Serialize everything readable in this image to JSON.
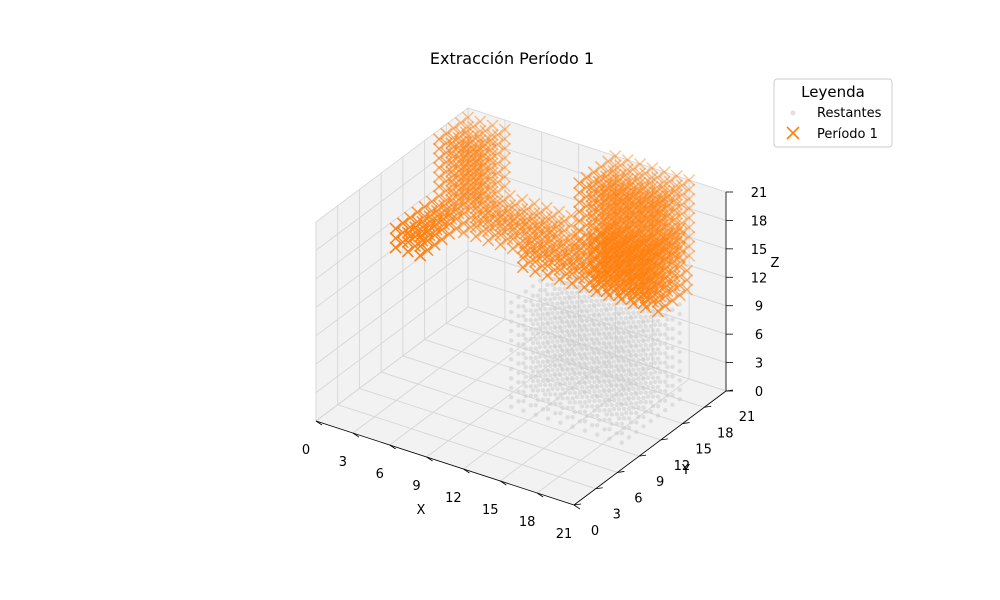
{
  "chart_data": {
    "type": "scatter",
    "projection": "3d",
    "title": "Extracción Período 1",
    "xlabel": "X",
    "ylabel": "Y",
    "zlabel": "Z",
    "xlim": [
      0,
      21
    ],
    "ylim": [
      0,
      21
    ],
    "zlim": [
      0,
      21
    ],
    "xticks": [
      "0",
      "3",
      "6",
      "9",
      "12",
      "15",
      "18",
      "21"
    ],
    "yticks": [
      "0",
      "3",
      "6",
      "9",
      "12",
      "15",
      "18",
      "21"
    ],
    "zticks": [
      "0",
      "3",
      "6",
      "9",
      "12",
      "15",
      "18",
      "21"
    ],
    "grid": true,
    "legend": {
      "title": "Leyenda",
      "placement": "top-right",
      "entries": [
        "Restantes",
        "Período 1"
      ]
    },
    "series": [
      {
        "name": "Restantes",
        "marker": "dot",
        "color": "#cccccc",
        "regions": [
          {
            "x": [
              10,
              19
            ],
            "y": [
              10,
              18
            ],
            "z": [
              0,
              11
            ],
            "step": 1
          }
        ]
      },
      {
        "name": "Período 1",
        "marker": "x",
        "color": "#ff7f0e",
        "regions": [
          {
            "x": [
              0,
              2
            ],
            "y": [
              11,
              21
            ],
            "z": [
              12,
              14
            ],
            "step": 1
          },
          {
            "x": [
              0,
              3
            ],
            "y": [
              17,
              21
            ],
            "z": [
              14,
              20
            ],
            "step": 1
          },
          {
            "x": [
              2,
              9
            ],
            "y": [
              17,
              20
            ],
            "z": [
              11,
              14
            ],
            "step": 1
          },
          {
            "x": [
              8,
              19
            ],
            "y": [
              15,
              19
            ],
            "z": [
              11,
              13
            ],
            "step": 1
          },
          {
            "x": [
              12,
              18
            ],
            "y": [
              16,
              21
            ],
            "z": [
              13,
              21
            ],
            "step": 1
          },
          {
            "x": [
              15,
              19
            ],
            "y": [
              13,
              18
            ],
            "z": [
              13,
              18
            ],
            "step": 1
          }
        ]
      }
    ]
  },
  "colors": {
    "accent": "#ff7f0e",
    "remaining": "#cccccc",
    "pane": "#f2f2f2",
    "grid": "#d6d6d6"
  }
}
